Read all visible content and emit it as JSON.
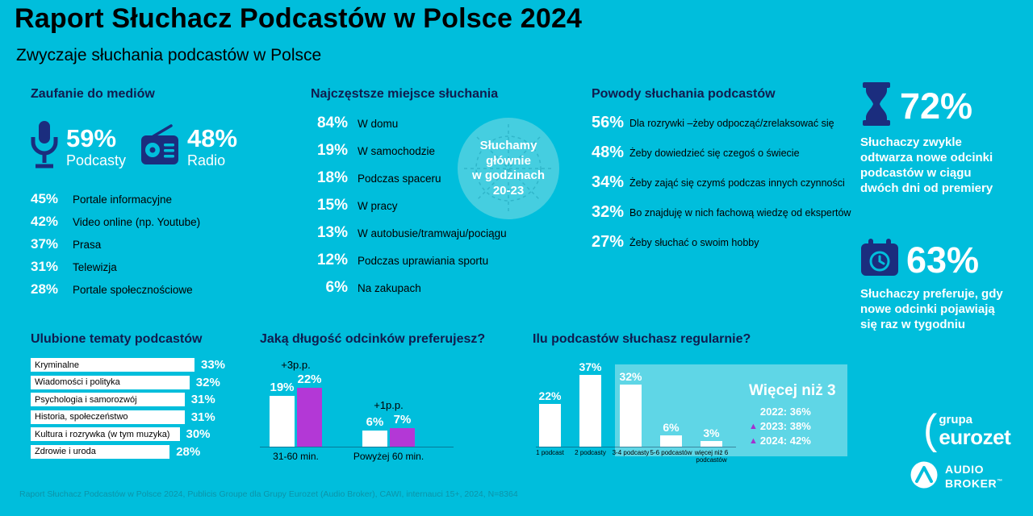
{
  "page": {
    "title": "Raport Słuchacz Podcastów w Polsce 2024",
    "subtitle": "Zwyczaje słuchania podcastów w Polsce",
    "footer": "Raport Słuchacz Podcastów w Polsce 2024, Publicis Groupe dla Grupy Eurozet (Audio Broker), CAWI, internauci 15+, 2024, N=8364"
  },
  "colors": {
    "background": "#00BEDC",
    "navy_icon": "#1B2D7E",
    "navy_header": "#101C4E",
    "white": "#FFFFFF",
    "black": "#000000",
    "magenta": "#B338D6",
    "badge_fill": "#45CEE0",
    "highlight_fill": "#5FD6E6",
    "footer_text": "#0C93A8"
  },
  "trust": {
    "header": "Zaufanie do mediów",
    "featured": [
      {
        "icon": "microphone-icon",
        "value": "59%",
        "label": "Podcasty"
      },
      {
        "icon": "radio-icon",
        "value": "48%",
        "label": "Radio"
      }
    ],
    "items": [
      {
        "value": "45%",
        "label": "Portale informacyjne"
      },
      {
        "value": "42%",
        "label": "Video online (np. Youtube)"
      },
      {
        "value": "37%",
        "label": "Prasa"
      },
      {
        "value": "31%",
        "label": "Telewizja"
      },
      {
        "value": "28%",
        "label": "Portale społecznościowe"
      }
    ]
  },
  "places": {
    "header": "Najczęstsze miejsce słuchania",
    "items": [
      {
        "value": "84%",
        "label": "W domu"
      },
      {
        "value": "19%",
        "label": "W samochodzie"
      },
      {
        "value": "18%",
        "label": "Podczas spaceru"
      },
      {
        "value": "15%",
        "label": "W pracy"
      },
      {
        "value": "13%",
        "label": "W autobusie/tramwaju/pociągu"
      },
      {
        "value": "12%",
        "label": "Podczas uprawiania sportu"
      },
      {
        "value": "6%",
        "label": "Na zakupach"
      }
    ],
    "badge": {
      "lines": [
        "Słuchamy",
        "głównie",
        "w godzinach",
        "20-23"
      ]
    }
  },
  "reasons": {
    "header": "Powody słuchania podcastów",
    "items": [
      {
        "value": "56%",
        "label": "Dla rozrywki –żeby odpocząć/zrelaksować się"
      },
      {
        "value": "48%",
        "label": "Żeby dowiedzieć się czegoś o świecie"
      },
      {
        "value": "34%",
        "label": "Żeby zająć się czymś podczas innych czynności"
      },
      {
        "value": "32%",
        "label": "Bo znajduję w nich fachową wiedzę od ekspertów"
      },
      {
        "value": "27%",
        "label": "Żeby słuchać o swoim hobby"
      }
    ]
  },
  "stats": [
    {
      "icon": "hourglass-icon",
      "value": "72%",
      "text": "Słuchaczy zwykle odtwarza nowe odcinki podcastów w ciągu dwóch dni od premiery"
    },
    {
      "icon": "calendar-clock-icon",
      "value": "63%",
      "text": "Słuchaczy preferuje, gdy nowe odcinki pojawiają się raz w tygodniu"
    }
  ],
  "topics": {
    "header": "Ulubione tematy podcastów",
    "items": [
      {
        "label": "Kryminalne",
        "value": "33%",
        "pct": 33
      },
      {
        "label": "Wiadomości i polityka",
        "value": "32%",
        "pct": 32
      },
      {
        "label": "Psychologia i samorozwój",
        "value": "31%",
        "pct": 31
      },
      {
        "label": "Historia, społeczeństwo",
        "value": "31%",
        "pct": 31
      },
      {
        "label": "Kultura i rozrywka (w tym muzyka)",
        "value": "30%",
        "pct": 30
      },
      {
        "label": "Zdrowie i uroda",
        "value": "28%",
        "pct": 28
      }
    ]
  },
  "length": {
    "header": "Jaką długość odcinków preferujesz?",
    "groups": [
      {
        "label": "31-60 min.",
        "delta": "+3p.p.",
        "v1": "19%",
        "p1": 19,
        "v2": "22%",
        "p2": 22
      },
      {
        "label": "Powyżej 60 min.",
        "delta": "+1p.p.",
        "v1": "6%",
        "p1": 6,
        "v2": "7%",
        "p2": 7
      }
    ]
  },
  "regular": {
    "header": "Ilu podcastów słuchasz regularnie?",
    "bars": [
      {
        "label": "1 podcast",
        "value": "22%",
        "pct": 22
      },
      {
        "label": "2 podcasty",
        "value": "37%",
        "pct": 37
      },
      {
        "label": "3-4 podcasty",
        "value": "32%",
        "pct": 32
      },
      {
        "label": "5-6 podcastów",
        "value": "6%",
        "pct": 6
      },
      {
        "label": "więcej niż 6 podcastów",
        "value": "3%",
        "pct": 3
      }
    ],
    "highlight": {
      "title": "Więcej niż 3",
      "rows": [
        {
          "arrow": false,
          "text": "2022: 36%"
        },
        {
          "arrow": true,
          "text": "2023: 38%"
        },
        {
          "arrow": true,
          "text": "2024: 42%"
        }
      ]
    }
  },
  "logos": {
    "eurozet": {
      "paren": "(",
      "top": "grupa",
      "bottom": "eurozet"
    },
    "audio_broker": {
      "line1": "AUDIO",
      "line2": "BROKER",
      "tm": "™"
    }
  },
  "chart_data": [
    {
      "type": "bar",
      "title": "Zaufanie do mediów",
      "categories": [
        "Podcasty",
        "Radio",
        "Portale informacyjne",
        "Video online (np. Youtube)",
        "Prasa",
        "Telewizja",
        "Portale społecznościowe"
      ],
      "values": [
        59,
        48,
        45,
        42,
        37,
        31,
        28
      ],
      "unit": "%",
      "presentation": "value-list with icons for Podcasty and Radio"
    },
    {
      "type": "bar",
      "title": "Najczęstsze miejsce słuchania",
      "categories": [
        "W domu",
        "W samochodzie",
        "Podczas spaceru",
        "W pracy",
        "W autobusie/tramwaju/pociągu",
        "Podczas uprawiania sportu",
        "Na zakupach"
      ],
      "values": [
        84,
        19,
        18,
        15,
        13,
        12,
        6
      ],
      "unit": "%",
      "annotation": "Słuchamy głównie w godzinach 20-23",
      "presentation": "value-list"
    },
    {
      "type": "bar",
      "title": "Powody słuchania podcastów",
      "categories": [
        "Dla rozrywki –żeby odpocząć/zrelaksować się",
        "Żeby dowiedzieć się czegoś o świecie",
        "Żeby zająć się czymś podczas innych czynności",
        "Bo znajduję w nich fachową wiedzę od ekspertów",
        "Żeby słuchać o swoim hobby"
      ],
      "values": [
        56,
        48,
        34,
        32,
        27
      ],
      "unit": "%",
      "presentation": "value-list"
    },
    {
      "type": "bar",
      "title": "Ulubione tematy podcastów",
      "orientation": "horizontal",
      "categories": [
        "Kryminalne",
        "Wiadomości i polityka",
        "Psychologia i samorozwój",
        "Historia, społeczeństwo",
        "Kultura i rozrywka (w tym muzyka)",
        "Zdrowie i uroda"
      ],
      "values": [
        33,
        32,
        31,
        31,
        30,
        28
      ],
      "unit": "%"
    },
    {
      "type": "bar",
      "title": "Jaką długość odcinków preferujesz?",
      "categories": [
        "31-60 min.",
        "Powyżej 60 min."
      ],
      "series": [
        {
          "name": "series-1-white",
          "values": [
            19,
            6
          ]
        },
        {
          "name": "series-2-magenta",
          "values": [
            22,
            7
          ]
        }
      ],
      "annotations": [
        "+3p.p.",
        "+1p.p."
      ],
      "unit": "%"
    },
    {
      "type": "bar",
      "title": "Ilu podcastów słuchasz regularnie?",
      "categories": [
        "1 podcast",
        "2 podcasty",
        "3-4 podcasty",
        "5-6 podcastów",
        "więcej niż 6 podcastów"
      ],
      "values": [
        22,
        37,
        32,
        6,
        3
      ],
      "unit": "%",
      "annotation": {
        "title": "Więcej niż 3",
        "2022": "36%",
        "2023": "38%",
        "2024": "42%"
      }
    }
  ]
}
